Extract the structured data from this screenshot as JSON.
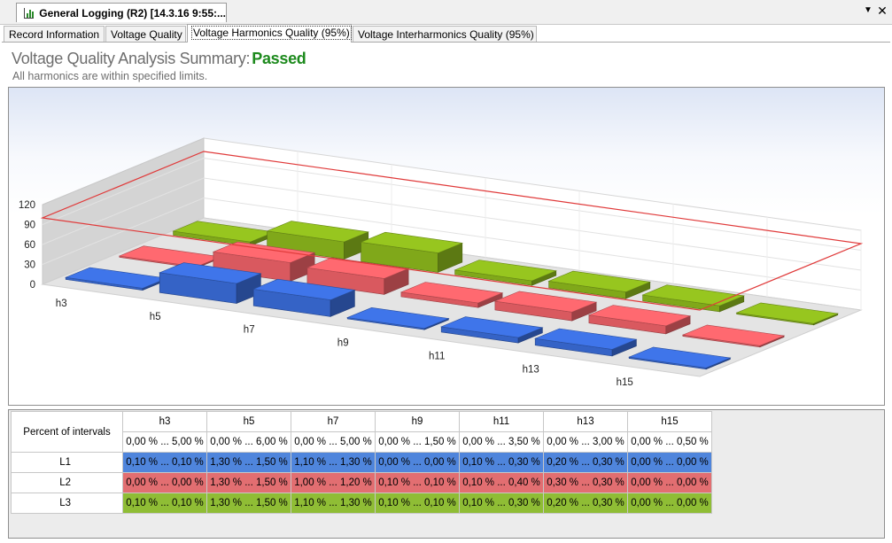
{
  "window": {
    "doc_tab_title": "General Logging (R2) [14.3.16 9:55:...",
    "dropdown_glyph": "▼",
    "close_glyph": "✕"
  },
  "tabs": [
    {
      "label": "Record Information"
    },
    {
      "label": "Voltage Quality"
    },
    {
      "label": "Voltage Harmonics Quality (95%)"
    },
    {
      "label": "Voltage Interharmonics Quality (95%)"
    }
  ],
  "summary": {
    "title_prefix": "Voltage Quality Analysis Summary:",
    "status": "Passed",
    "subtitle": "All harmonics are within specified limits."
  },
  "colors": {
    "L1": "#3563c6",
    "L2": "#d9595f",
    "L3": "#80a81a",
    "limit_line": "#e03a3a",
    "status_passed": "#1d8a1d"
  },
  "chart_data": {
    "type": "bar",
    "categories": [
      "h3",
      "h5",
      "h7",
      "h9",
      "h11",
      "h13",
      "h15"
    ],
    "y_ticks": [
      "120",
      "90",
      "60",
      "30",
      "0"
    ],
    "ylim": [
      0,
      120
    ],
    "series": [
      {
        "values": [
          3,
          30,
          25,
          2,
          8,
          10,
          2
        ]
      },
      {
        "values": [
          2,
          28,
          24,
          7,
          13,
          12,
          2
        ]
      },
      {
        "values": [
          6,
          26,
          29,
          7,
          10,
          9,
          2
        ]
      }
    ],
    "limit_line_value": 100,
    "grid": true
  },
  "table": {
    "corner_label": "Percent of intervals",
    "columns": [
      {
        "name": "h3",
        "limit": "0,00 % ... 5,00 %"
      },
      {
        "name": "h5",
        "limit": "0,00 % ... 6,00 %"
      },
      {
        "name": "h7",
        "limit": "0,00 % ... 5,00 %"
      },
      {
        "name": "h9",
        "limit": "0,00 % ... 1,50 %"
      },
      {
        "name": "h11",
        "limit": "0,00 % ... 3,50 %"
      },
      {
        "name": "h13",
        "limit": "0,00 % ... 3,00 %"
      },
      {
        "name": "h15",
        "limit": "0,00 % ... 0,50 %"
      }
    ],
    "rows": [
      {
        "label": "L1",
        "values": [
          "0,10 % ... 0,10 %",
          "1,30 % ... 1,50 %",
          "1,10 % ... 1,30 %",
          "0,00 % ... 0,00 %",
          "0,10 % ... 0,30 %",
          "0,20 % ... 0,30 %",
          "0,00 % ... 0,00 %"
        ]
      },
      {
        "label": "L2",
        "values": [
          "0,00 % ... 0,00 %",
          "1,30 % ... 1,50 %",
          "1,00 % ... 1,20 %",
          "0,10 % ... 0,10 %",
          "0,10 % ... 0,40 %",
          "0,30 % ... 0,30 %",
          "0,00 % ... 0,00 %"
        ]
      },
      {
        "label": "L3",
        "values": [
          "0,10 % ... 0,10 %",
          "1,30 % ... 1,50 %",
          "1,10 % ... 1,30 %",
          "0,10 % ... 0,10 %",
          "0,10 % ... 0,30 %",
          "0,20 % ... 0,30 %",
          "0,00 % ... 0,00 %"
        ]
      }
    ]
  }
}
